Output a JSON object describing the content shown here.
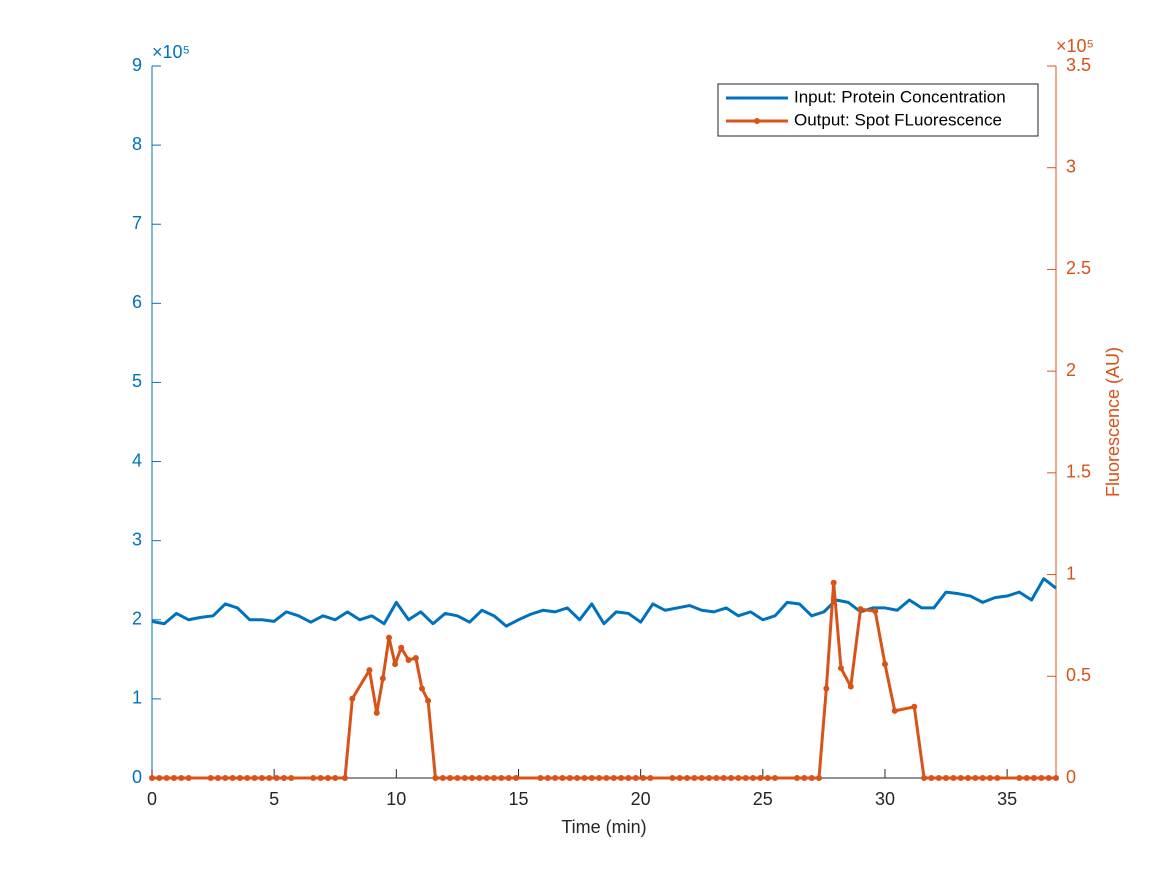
{
  "chart_data": {
    "type": "line",
    "xlabel": "Time (min)",
    "y2label": "Fluorescence (AU)",
    "y_exponent_label": "×10⁵",
    "y2_exponent_label": "×10⁵",
    "xlim": [
      0,
      37
    ],
    "xticks": [
      0,
      5,
      10,
      15,
      20,
      25,
      30,
      35
    ],
    "ylim": [
      0,
      9
    ],
    "yticks": [
      0,
      1,
      2,
      3,
      4,
      5,
      6,
      7,
      8,
      9
    ],
    "y2lim": [
      0,
      3.5
    ],
    "y2ticks": [
      0,
      0.5,
      1,
      1.5,
      2,
      2.5,
      3,
      3.5
    ],
    "grid": false,
    "legend": "top-right",
    "series": [
      {
        "name": "Input: Protein Concentration",
        "color": "#0072BD",
        "axis": "y",
        "marker": false,
        "x": [
          0,
          0.5,
          1,
          1.5,
          2,
          2.5,
          3,
          3.5,
          4,
          4.5,
          5,
          5.5,
          6,
          6.5,
          7,
          7.5,
          8,
          8.5,
          9,
          9.5,
          10,
          10.5,
          11,
          11.5,
          12,
          12.5,
          13,
          13.5,
          14,
          14.5,
          15,
          15.5,
          16,
          16.5,
          17,
          17.5,
          18,
          18.5,
          19,
          19.5,
          20,
          20.5,
          21,
          21.5,
          22,
          22.5,
          23,
          23.5,
          24,
          24.5,
          25,
          25.5,
          26,
          26.5,
          27,
          27.5,
          28,
          28.5,
          29,
          29.5,
          30,
          30.5,
          31,
          31.5,
          32,
          32.5,
          33,
          33.5,
          34,
          34.5,
          35,
          35.5,
          36,
          36.5,
          37
        ],
        "values": [
          1.98,
          1.95,
          2.08,
          2.0,
          2.03,
          2.05,
          2.2,
          2.15,
          2.0,
          2.0,
          1.98,
          2.1,
          2.05,
          1.97,
          2.05,
          2.0,
          2.1,
          2.0,
          2.05,
          1.95,
          2.22,
          2.0,
          2.1,
          1.95,
          2.08,
          2.05,
          1.97,
          2.12,
          2.05,
          1.92,
          2.0,
          2.07,
          2.12,
          2.1,
          2.15,
          2.0,
          2.2,
          1.95,
          2.1,
          2.08,
          1.97,
          2.2,
          2.12,
          2.15,
          2.18,
          2.12,
          2.1,
          2.15,
          2.05,
          2.1,
          2.0,
          2.05,
          2.22,
          2.2,
          2.05,
          2.1,
          2.25,
          2.22,
          2.1,
          2.15,
          2.15,
          2.12,
          2.25,
          2.15,
          2.15,
          2.35,
          2.33,
          2.3,
          2.22,
          2.28,
          2.3,
          2.35,
          2.25,
          2.52,
          2.4
        ]
      },
      {
        "name": "Output: Spot FLuorescence",
        "color": "#D95319",
        "axis": "y2",
        "marker": true,
        "x": [
          0,
          0.3,
          0.6,
          0.9,
          1.2,
          1.5,
          2.4,
          2.7,
          3.0,
          3.3,
          3.6,
          3.9,
          4.2,
          4.5,
          4.8,
          5.1,
          5.4,
          5.7,
          6.6,
          6.9,
          7.2,
          7.5,
          7.9,
          8.2,
          8.9,
          9.2,
          9.45,
          9.7,
          9.95,
          10.2,
          10.5,
          10.8,
          11.05,
          11.3,
          11.6,
          11.9,
          12.2,
          12.5,
          12.8,
          13.1,
          13.4,
          13.7,
          14.0,
          14.3,
          14.6,
          14.9,
          15.9,
          16.2,
          16.5,
          16.8,
          17.1,
          17.4,
          17.7,
          18.0,
          18.3,
          18.6,
          18.9,
          19.2,
          19.5,
          19.8,
          20.1,
          20.4,
          21.3,
          21.6,
          21.9,
          22.2,
          22.5,
          22.8,
          23.1,
          23.4,
          23.7,
          24.0,
          24.3,
          24.6,
          24.9,
          25.2,
          25.5,
          26.4,
          26.7,
          27.0,
          27.3,
          27.6,
          27.9,
          28.2,
          28.6,
          29.0,
          29.6,
          30.0,
          30.4,
          31.2,
          31.6,
          31.9,
          32.2,
          32.5,
          32.8,
          33.1,
          33.4,
          33.7,
          34.0,
          34.3,
          34.6,
          35.5,
          35.8,
          36.1,
          36.4,
          36.7,
          37
        ],
        "values": [
          0,
          0,
          0,
          0,
          0,
          0,
          0,
          0,
          0,
          0,
          0,
          0,
          0,
          0,
          0,
          0,
          0,
          0,
          0,
          0,
          0,
          0,
          0,
          0.39,
          0.53,
          0.32,
          0.49,
          0.69,
          0.56,
          0.64,
          0.58,
          0.59,
          0.44,
          0.38,
          0,
          0,
          0,
          0,
          0,
          0,
          0,
          0,
          0,
          0,
          0,
          0,
          0,
          0,
          0,
          0,
          0,
          0,
          0,
          0,
          0,
          0,
          0,
          0,
          0,
          0,
          0,
          0,
          0,
          0,
          0,
          0,
          0,
          0,
          0,
          0,
          0,
          0,
          0,
          0,
          0,
          0,
          0,
          0,
          0,
          0,
          0,
          0.44,
          0.96,
          0.54,
          0.45,
          0.83,
          0.82,
          0.56,
          0.33,
          0.35,
          0,
          0,
          0,
          0,
          0,
          0,
          0,
          0,
          0,
          0,
          0,
          0,
          0,
          0,
          0,
          0,
          0
        ]
      }
    ]
  }
}
